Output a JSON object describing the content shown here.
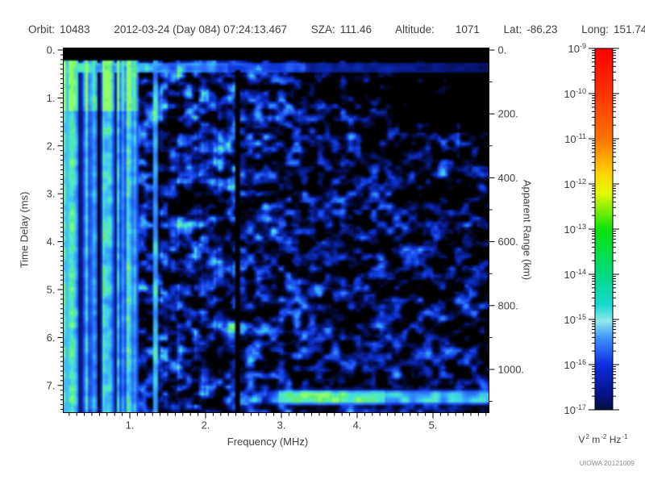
{
  "header": {
    "orbit_label": "Orbit:",
    "orbit_value": "10483",
    "datetime": "2012-03-24 (Day 084) 07:24:13.467",
    "sza_label": "SZA:",
    "sza_value": "111.46",
    "altitude_label": "Altitude:",
    "altitude_value": "1071",
    "lat_label": "Lat:",
    "lat_value": "-86.23",
    "long_label": "Long:",
    "long_value": "151.74"
  },
  "footer": {
    "credit": "UIOWA 20121009"
  },
  "chart_data": {
    "type": "heatmap",
    "xlabel": "Frequency (MHz)",
    "ylabel_left": "Time Delay (ms)",
    "ylabel_right": "Apparent Range (km)",
    "x_range_mhz": [
      0.12,
      5.73
    ],
    "x_tick_values": [
      1,
      2,
      3,
      4,
      5
    ],
    "x_tick_labels": [
      "1.",
      "2.",
      "3.",
      "4.",
      "5."
    ],
    "x_minor_step_mhz": 0.1,
    "y_range_ms": [
      0,
      7.56
    ],
    "y_tick_values": [
      0,
      1,
      2,
      3,
      4,
      5,
      6,
      7
    ],
    "y_tick_labels": [
      "0.",
      "1.",
      "2.",
      "3.",
      "4.",
      "5.",
      "6.",
      "7."
    ],
    "y_minor_step_ms": 0.1,
    "right_axis_tick_values_km": [
      0,
      200,
      400,
      600,
      800,
      1000
    ],
    "right_axis_tick_labels": [
      "0.",
      "200.",
      "400.",
      "600.",
      "800.",
      "1000."
    ],
    "right_axis_minor_step_km": 100,
    "range_km_per_ms": 150,
    "colorbar": {
      "scale": "log",
      "base": "10",
      "decade_exponents": [
        "-9",
        "-10",
        "-11",
        "-12",
        "-13",
        "-14",
        "-15",
        "-16",
        "-17"
      ],
      "unit_segments": [
        [
          "V",
          "2"
        ],
        [
          "m",
          "-2"
        ],
        [
          "Hz",
          "-1"
        ]
      ],
      "gradient": [
        {
          "pos": 0.0,
          "color": "#fb0000"
        },
        {
          "pos": 0.125,
          "color": "#ff3300"
        },
        {
          "pos": 0.25,
          "color": "#ff7300"
        },
        {
          "pos": 0.345,
          "color": "#ffd300"
        },
        {
          "pos": 0.4,
          "color": "#e8f700"
        },
        {
          "pos": 0.5,
          "color": "#0ce30c"
        },
        {
          "pos": 0.625,
          "color": "#00da80"
        },
        {
          "pos": 0.71,
          "color": "#19d8d0"
        },
        {
          "pos": 0.755,
          "color": "#8feaea"
        },
        {
          "pos": 0.8,
          "color": "#3e96ff"
        },
        {
          "pos": 0.875,
          "color": "#0e2ce0"
        },
        {
          "pos": 0.96,
          "color": "#041283"
        },
        {
          "pos": 1.0,
          "color": "#021040"
        }
      ]
    },
    "features": {
      "top_blank_band_ms": [
        0,
        0.22
      ],
      "transmit_pulse_line_ms": 0.3,
      "ionospheric_stripe_region_mhz": [
        0.12,
        1.12
      ],
      "electron_plasma_line_mhz": 1.33,
      "data_gap_mhz": 2.42,
      "surface_reflection_band": {
        "time_delay_ms": [
          7.05,
          7.45
        ],
        "freq_min_mhz": 2.62
      },
      "noise_seed": 1337
    }
  }
}
